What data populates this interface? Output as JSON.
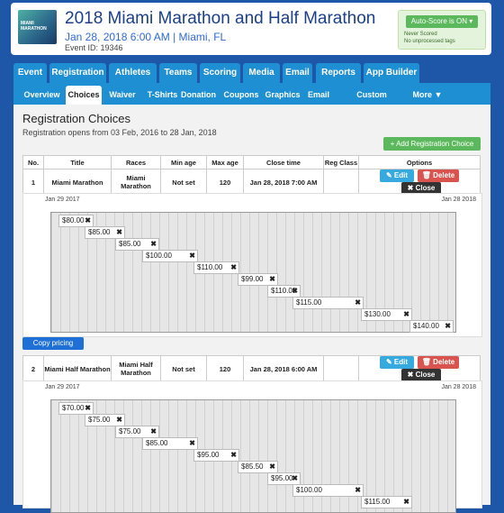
{
  "header": {
    "logo_text": "MIAMI MARATHON",
    "title": "2018 Miami Marathon and Half Marathon",
    "date_location": "Jan 28, 2018 6:00 AM | Miami, FL",
    "event_id": "Event ID: 19346",
    "auto_score_label": "Auto-Score is ON ▾",
    "status_1": "Never Scored",
    "status_2": "No unprocessed tags"
  },
  "tabs": [
    "Event",
    "Registration",
    "Athletes",
    "Teams",
    "Scoring",
    "Media",
    "Email",
    "Reports",
    "App Builder"
  ],
  "subtabs": [
    "Overview",
    "Choices",
    "Waiver",
    "T-Shirts",
    "Donation",
    "Coupons",
    "Graphics",
    "Email",
    "Custom Questions",
    "More ▼"
  ],
  "panel": {
    "title": "Registration Choices",
    "subtitle": "Registration opens from 03 Feb, 2016 to 28 Jan, 2018",
    "add_button": "+ Add Registration Choice",
    "copy_button": "Copy pricing"
  },
  "table": {
    "headers": [
      "No.",
      "Title",
      "Races",
      "Min age",
      "Max age",
      "Close time",
      "Reg Class",
      "Options"
    ],
    "rows": [
      {
        "no": "1",
        "title": "Miami Marathon",
        "races": "Miami Marathon",
        "min_age": "Not set",
        "max_age": "120",
        "close_time": "Jan 28, 2018 7:00 AM",
        "reg_class": ""
      },
      {
        "no": "2",
        "title": "Miami Half Marathon",
        "races": "Miami Half Marathon",
        "min_age": "Not set",
        "max_age": "120",
        "close_time": "Jan 28, 2018 6:00 AM",
        "reg_class": ""
      }
    ],
    "edit_label": "✎ Edit",
    "delete_label": "🗑 Delete",
    "close_label": "✖ Close"
  },
  "pricing": [
    {
      "start": "Jan 29 2017",
      "end": "Jan 28 2018",
      "prices": [
        "$80.00",
        "$85.00",
        "$85.00",
        "$100.00",
        "$110.00",
        "$99.00",
        "$110.00",
        "$115.00",
        "$130.00",
        "$140.00"
      ]
    },
    {
      "start": "Jan 29 2017",
      "end": "Jan 28 2018",
      "prices": [
        "$70.00",
        "$75.00",
        "$75.00",
        "$85.00",
        "$95.00",
        "$85.50",
        "$95.00",
        "$100.00",
        "$115.00"
      ]
    }
  ],
  "colors": {
    "brand_blue": "#1e57a8",
    "tab_blue": "#1e8fd3",
    "green": "#5cb85c",
    "red": "#d9534f"
  }
}
